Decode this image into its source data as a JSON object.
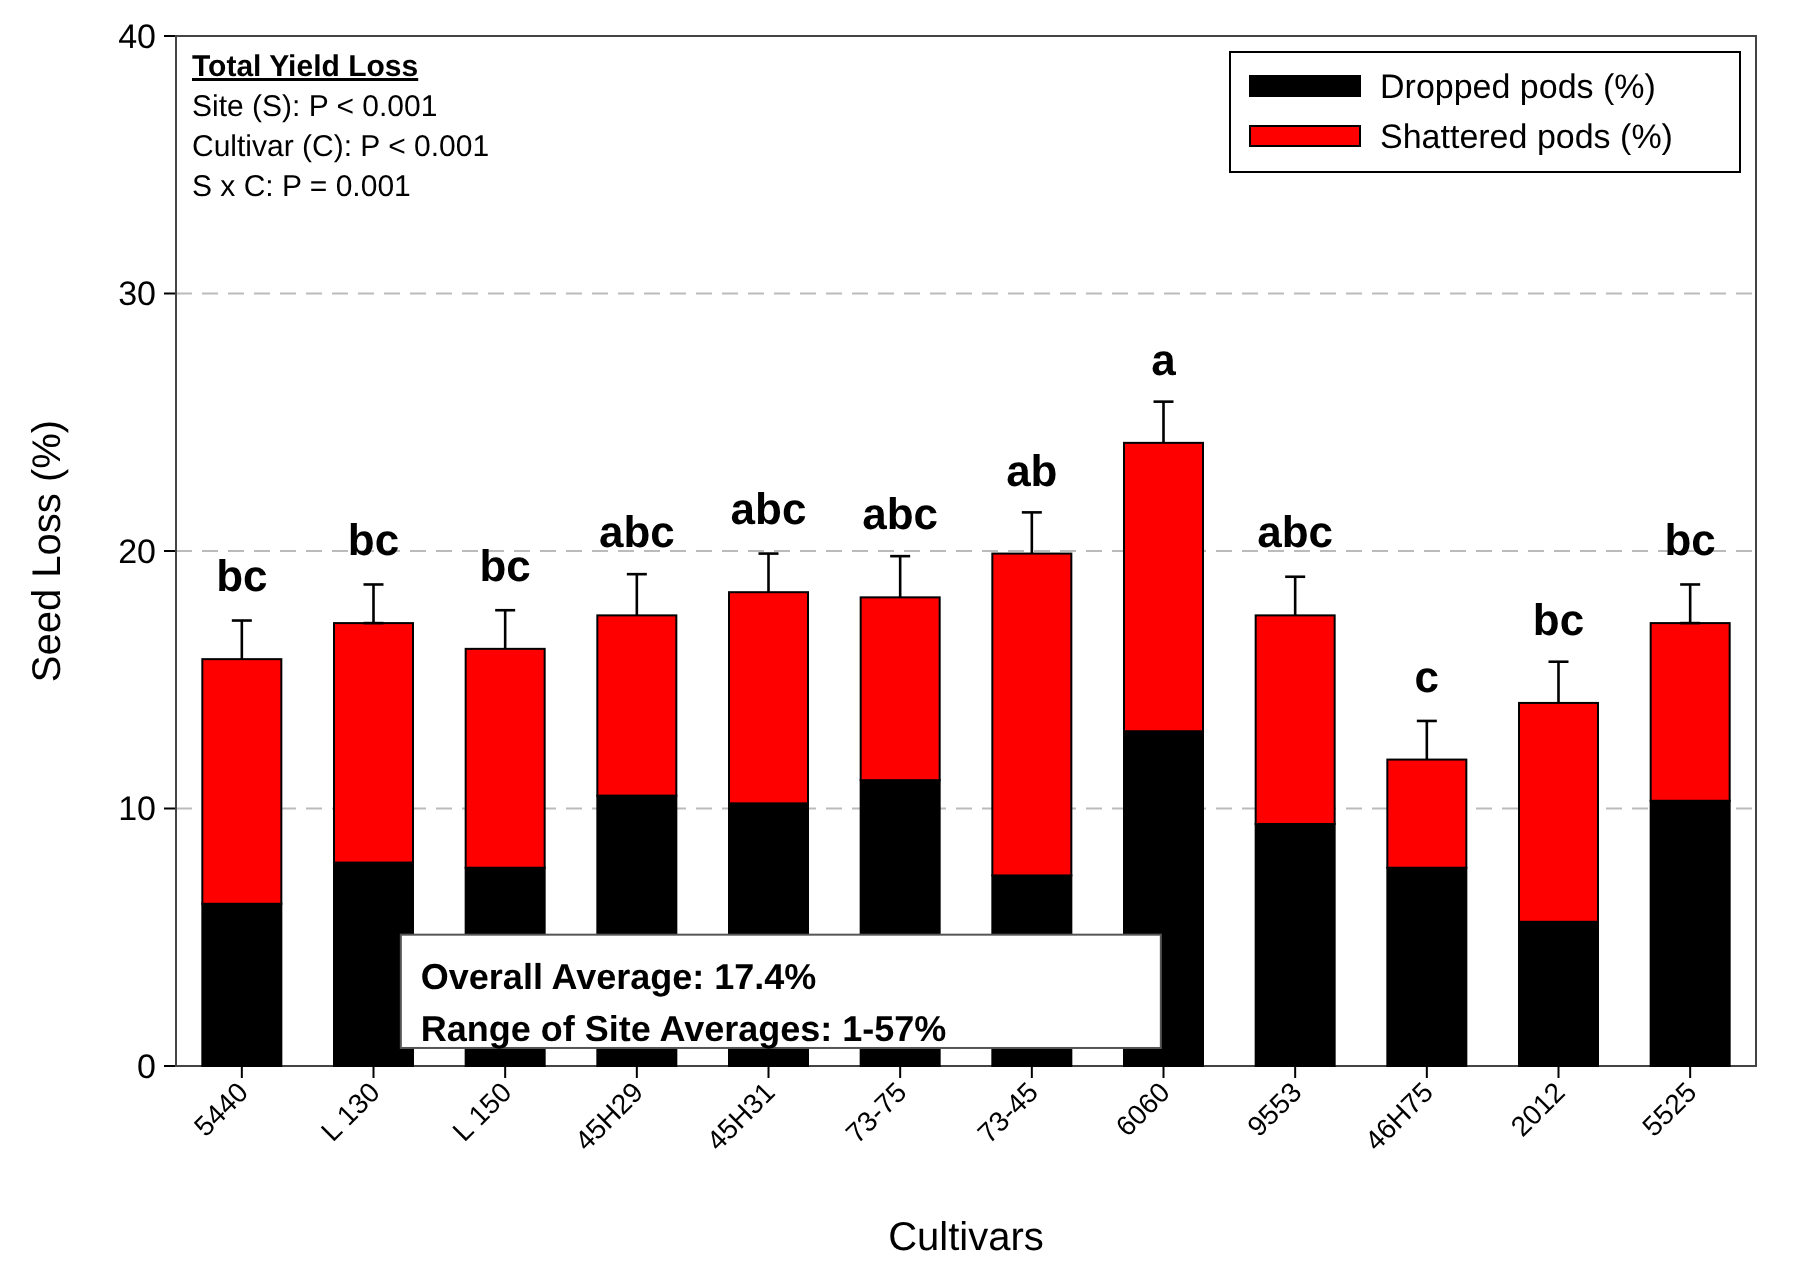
{
  "chart_data": {
    "type": "bar",
    "stacked": true,
    "xlabel": "Cultivars",
    "ylabel": "Seed Loss (%)",
    "categories": [
      "5440",
      "L 130",
      "L 150",
      "45H29",
      "45H31",
      "73-75",
      "73-45",
      "6060",
      "9553",
      "46H75",
      "2012",
      "5525"
    ],
    "series": [
      {
        "name": "Dropped pods (%)",
        "color": "#000000",
        "values": [
          6.3,
          7.9,
          7.7,
          10.5,
          10.2,
          11.1,
          7.4,
          13.0,
          9.4,
          7.7,
          5.6,
          10.3
        ]
      },
      {
        "name": "Shattered pods (%)",
        "color": "#ff0000",
        "values": [
          9.5,
          9.3,
          8.5,
          7.0,
          8.2,
          7.1,
          12.5,
          11.2,
          8.1,
          4.2,
          8.5,
          6.9
        ],
        "errors": [
          [
            15.8,
            17.3
          ],
          [
            17.2,
            18.7
          ],
          [
            16.2,
            17.7
          ],
          [
            17.5,
            19.1
          ],
          [
            18.4,
            19.9
          ],
          [
            18.2,
            19.8
          ],
          [
            19.9,
            21.5
          ],
          [
            24.2,
            25.8
          ],
          [
            17.5,
            19.0
          ],
          [
            11.9,
            13.4
          ],
          [
            14.1,
            15.7
          ],
          [
            17.2,
            18.7
          ]
        ]
      }
    ],
    "ylim": [
      0,
      40
    ],
    "yticks": [
      0,
      10,
      20,
      30,
      40
    ],
    "grid": "y",
    "legend": "top right",
    "annotations": [
      "Total Yield Loss",
      "Site (S): P < 0.001",
      "Cultivar (C): P < 0.001",
      "S x C: P = 0.001",
      "Overall Average: 17.4%",
      "Range of Site Averages: 1-57%",
      {
        "text": "bc",
        "x": "5440",
        "y": 15.8
      },
      {
        "text": "bc",
        "x": "L 130",
        "y": 17.2
      },
      {
        "text": "bc",
        "x": "L 150",
        "y": 16.2
      },
      {
        "text": "abc",
        "x": "45H29",
        "y": 17.5
      },
      {
        "text": "abc",
        "x": "45H31",
        "y": 18.4
      },
      {
        "text": "abc",
        "x": "73-75",
        "y": 18.2
      },
      {
        "text": "ab",
        "x": "73-45",
        "y": 19.9
      },
      {
        "text": "a",
        "x": "6060",
        "y": 24.2
      },
      {
        "text": "abc",
        "x": "9553",
        "y": 17.5
      },
      {
        "text": "c",
        "x": "46H75",
        "y": 11.9
      },
      {
        "text": "bc",
        "x": "2012",
        "y": 14.1
      },
      {
        "text": "bc",
        "x": "5525",
        "y": 17.2
      }
    ]
  }
}
